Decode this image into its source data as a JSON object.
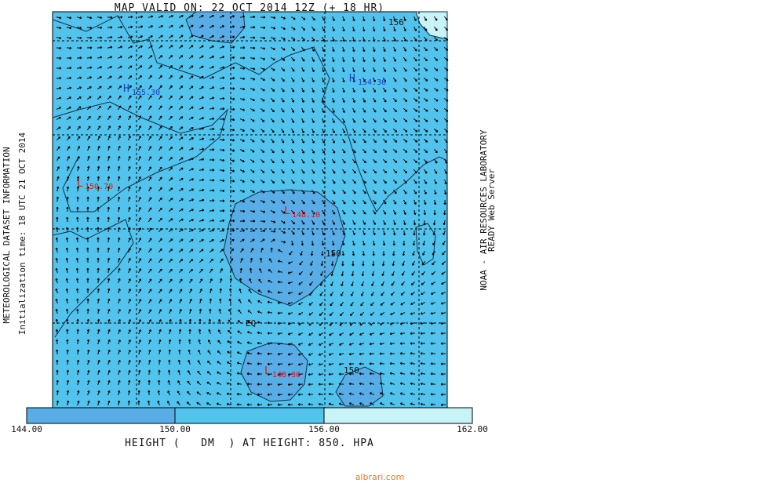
{
  "header": {
    "title": "MAP VALID ON: 22 OCT 2014 12Z (+ 18 HR)"
  },
  "side_left": {
    "line1": "METEOROLOGICAL DATASET INFORMATION",
    "line2": "Initialization time: 18 UTC 21 OCT 2014"
  },
  "side_right": {
    "line1": "NOAA - AIR RESOURCES LABORATORY",
    "line2": "READY Web Server"
  },
  "map_labels": [
    {
      "symbol": "H",
      "value": "155.30"
    },
    {
      "symbol": "H",
      "value": "154.30"
    },
    {
      "symbol": "L",
      "value": "150.70"
    },
    {
      "symbol": "L",
      "value": "148.10"
    },
    {
      "symbol": "L",
      "value": "148.30"
    }
  ],
  "contour_labels": [
    "156",
    "150",
    "150"
  ],
  "equator_label": "EQ",
  "colorbar": {
    "labels": [
      "144.00",
      "150.00",
      "156.00",
      "162.00"
    ]
  },
  "footer": {
    "caption": "HEIGHT (   DM  ) AT HEIGHT: 850. HPA",
    "watermark": "albrari.com"
  }
}
